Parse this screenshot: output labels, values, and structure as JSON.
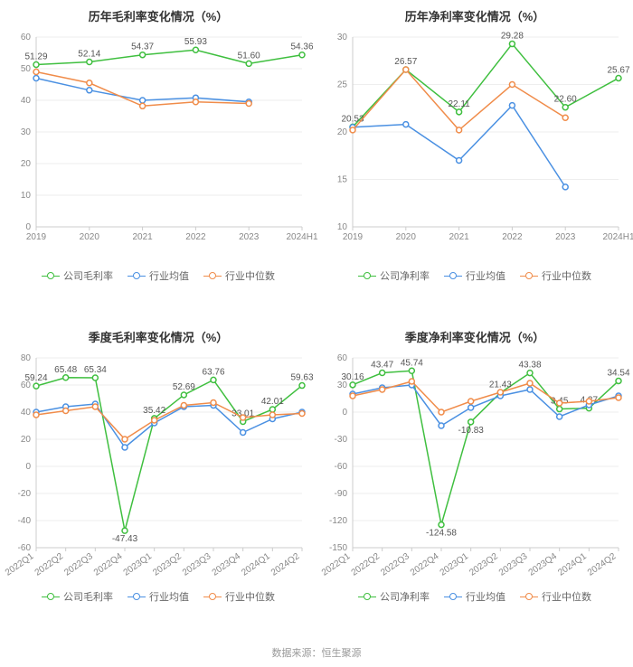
{
  "colors": {
    "company": "#3fbf3f",
    "industry_avg": "#4a90e2",
    "industry_median": "#f08c4a",
    "axis": "#cccccc",
    "grid": "#eeeeee",
    "tick": "#888888",
    "label": "#555555",
    "title": "#333333",
    "footer": "#999999",
    "bg": "#ffffff"
  },
  "legend_labels": {
    "company_gross": "公司毛利率",
    "company_net": "公司净利率",
    "industry_avg": "行业均值",
    "industry_median": "行业中位数"
  },
  "footer_text": "数据来源：恒生聚源",
  "charts": [
    {
      "id": "annual-gross",
      "title": "历年毛利率变化情况（%）",
      "ylim": [
        0,
        60
      ],
      "ytick_step": 10,
      "x_rotate": 0,
      "categories": [
        "2019",
        "2020",
        "2021",
        "2022",
        "2023",
        "2024H1"
      ],
      "series": [
        {
          "key": "company",
          "color_key": "company",
          "values": [
            51.29,
            52.14,
            54.37,
            55.93,
            51.6,
            54.36
          ],
          "labels": [
            "51.29",
            "52.14",
            "54.37",
            "55.93",
            "51.60",
            "54.36"
          ],
          "show_labels": true
        },
        {
          "key": "industry_avg",
          "color_key": "industry_avg",
          "values": [
            47.0,
            43.2,
            40.0,
            40.8,
            39.5,
            null
          ],
          "show_labels": false
        },
        {
          "key": "industry_median",
          "color_key": "industry_median",
          "values": [
            49.0,
            45.5,
            38.2,
            39.5,
            39.0,
            null
          ],
          "show_labels": false
        }
      ],
      "legend_company_key": "company_gross"
    },
    {
      "id": "annual-net",
      "title": "历年净利率变化情况（%）",
      "ylim": [
        10,
        30
      ],
      "ytick_step": 5,
      "x_rotate": 0,
      "categories": [
        "2019",
        "2020",
        "2021",
        "2022",
        "2023",
        "2024H1"
      ],
      "series": [
        {
          "key": "company",
          "color_key": "company",
          "values": [
            20.53,
            26.57,
            22.11,
            29.28,
            22.6,
            25.67
          ],
          "labels": [
            "20.53",
            "26.57",
            "22.11",
            "29.28",
            "22.60",
            "25.67"
          ],
          "show_labels": true
        },
        {
          "key": "industry_avg",
          "color_key": "industry_avg",
          "values": [
            20.5,
            20.8,
            17.0,
            22.8,
            14.2,
            null
          ],
          "show_labels": false
        },
        {
          "key": "industry_median",
          "color_key": "industry_median",
          "values": [
            20.2,
            26.57,
            20.2,
            25.0,
            21.5,
            null
          ],
          "show_labels": false
        }
      ],
      "legend_company_key": "company_net"
    },
    {
      "id": "quarter-gross",
      "title": "季度毛利率变化情况（%）",
      "ylim": [
        -60,
        80
      ],
      "ytick_step": 20,
      "x_rotate": -35,
      "categories": [
        "2022Q1",
        "2022Q2",
        "2022Q3",
        "2022Q4",
        "2023Q1",
        "2023Q2",
        "2023Q3",
        "2023Q4",
        "2024Q1",
        "2024Q2"
      ],
      "series": [
        {
          "key": "company",
          "color_key": "company",
          "values": [
            59.24,
            65.48,
            65.34,
            -47.43,
            35.42,
            52.69,
            63.76,
            33.01,
            42.01,
            59.63
          ],
          "labels": [
            "59.24",
            "65.48",
            "65.34",
            "-47.43",
            "35.42",
            "52.69",
            "63.76",
            "33.01",
            "42.01",
            "59.63"
          ],
          "label_idx": [
            0,
            1,
            2,
            3,
            4,
            5,
            6,
            7,
            8,
            9
          ],
          "show_labels": true
        },
        {
          "key": "industry_avg",
          "color_key": "industry_avg",
          "values": [
            40.0,
            44.0,
            46.0,
            14.0,
            32.0,
            44.0,
            45.0,
            25.0,
            35.0,
            40.0
          ],
          "show_labels": false
        },
        {
          "key": "industry_median",
          "color_key": "industry_median",
          "values": [
            38.0,
            41.0,
            44.0,
            20.0,
            34.0,
            45.0,
            47.0,
            36.0,
            38.0,
            39.0
          ],
          "show_labels": false
        }
      ],
      "legend_company_key": "company_gross"
    },
    {
      "id": "quarter-net",
      "title": "季度净利率变化情况（%）",
      "ylim": [
        -150,
        60
      ],
      "ytick_step": 30,
      "x_rotate": -35,
      "categories": [
        "2022Q1",
        "2022Q2",
        "2022Q3",
        "2022Q4",
        "2023Q1",
        "2023Q2",
        "2023Q3",
        "2023Q4",
        "2024Q1",
        "2024Q2"
      ],
      "series": [
        {
          "key": "company",
          "color_key": "company",
          "values": [
            30.16,
            43.47,
            45.74,
            -124.58,
            -10.83,
            21.43,
            43.38,
            3.45,
            4.37,
            34.54
          ],
          "labels": [
            "30.16",
            "43.47",
            "45.74",
            "-124.58",
            "-10.83",
            "21.43",
            "43.38",
            "3.45",
            "4.37",
            "34.54"
          ],
          "show_labels": true
        },
        {
          "key": "industry_avg",
          "color_key": "industry_avg",
          "values": [
            20.0,
            27.0,
            30.0,
            -15.0,
            5.0,
            18.0,
            25.0,
            -5.0,
            8.0,
            18.0
          ],
          "show_labels": false
        },
        {
          "key": "industry_median",
          "color_key": "industry_median",
          "values": [
            18.0,
            25.0,
            34.0,
            0.0,
            12.0,
            22.0,
            32.0,
            10.0,
            12.0,
            16.0
          ],
          "show_labels": false
        }
      ],
      "legend_company_key": "company_net"
    }
  ]
}
